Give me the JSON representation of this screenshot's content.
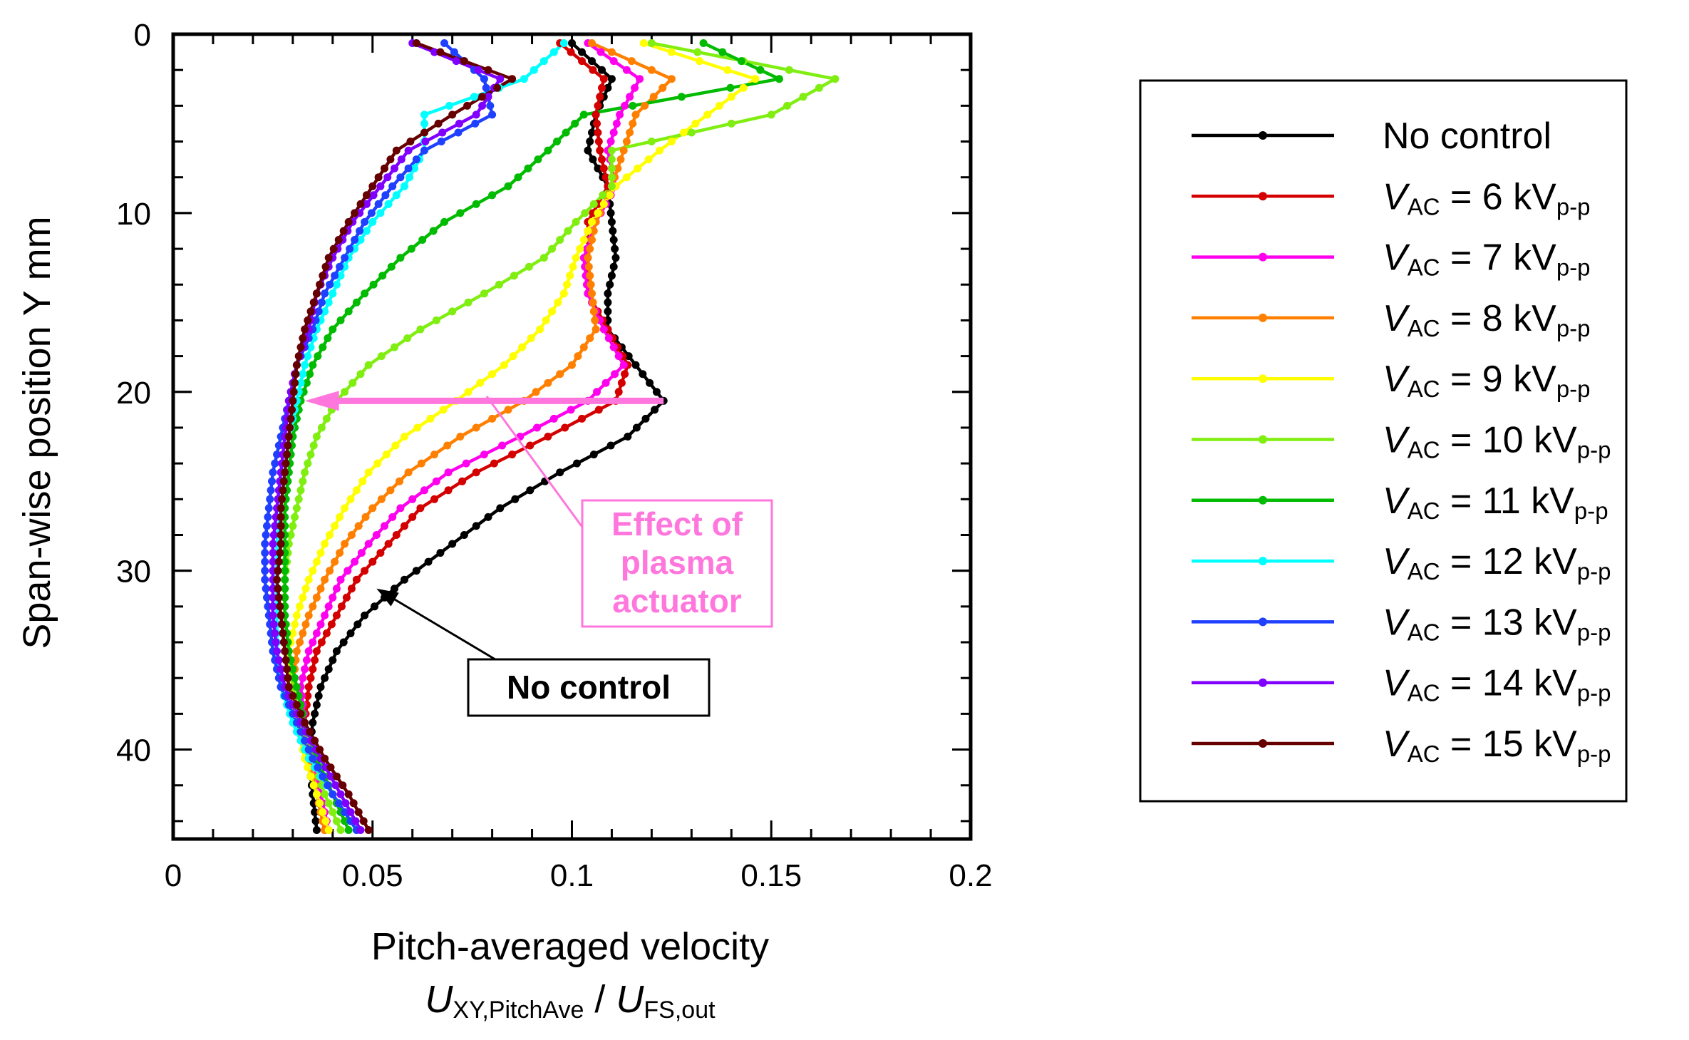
{
  "chart_data": {
    "type": "line",
    "title": "",
    "xlabel": "Pitch-averaged velocity",
    "xlabel_formula": {
      "num_main": "U",
      "num_sub": "XY,PitchAve",
      "den_main": "U",
      "den_sub": "FS,out"
    },
    "ylabel": "Span-wise position Y mm",
    "xlim": [
      0,
      0.2
    ],
    "ylim": [
      45,
      0
    ],
    "x_ticks": [
      "0",
      "0.05",
      "0.1",
      "0.15",
      "0.2"
    ],
    "y_ticks": [
      "0",
      "10",
      "20",
      "30",
      "40"
    ],
    "grid": false,
    "legend_position": "right",
    "y_values": [
      0.5,
      2.5,
      4.5,
      6.5,
      8.5,
      10.5,
      12.5,
      14.5,
      16.5,
      18.5,
      20.5,
      22.5,
      24.5,
      26.5,
      28.5,
      30.5,
      32.5,
      34.5,
      36.5,
      38.5,
      40.5,
      42.5,
      44.5
    ],
    "series": [
      {
        "name": "No control",
        "label_main": "No control",
        "label_sub": "",
        "label_tail": "",
        "color": "#000000",
        "x": [
          0.1,
          0.11,
          0.106,
          0.104,
          0.109,
          0.11,
          0.111,
          0.109,
          0.109,
          0.116,
          0.123,
          0.114,
          0.097,
          0.082,
          0.07,
          0.058,
          0.048,
          0.041,
          0.037,
          0.035,
          0.034,
          0.035,
          0.036
        ]
      },
      {
        "name": "VAC = 6 kVp-p",
        "label_main": "AC",
        "label_sub": "p-p",
        "label_tail": " = 6 kV",
        "color": "#d40000",
        "x": [
          0.097,
          0.108,
          0.106,
          0.107,
          0.109,
          0.104,
          0.104,
          0.104,
          0.109,
          0.114,
          0.111,
          0.094,
          0.076,
          0.062,
          0.054,
          0.046,
          0.041,
          0.036,
          0.034,
          0.033,
          0.034,
          0.036,
          0.038
        ]
      },
      {
        "name": "VAC = 7 kVp-p",
        "label_main": "AC",
        "label_sub": "p-p",
        "label_tail": " = 7 kV",
        "color": "#ff00ee",
        "x": [
          0.104,
          0.117,
          0.112,
          0.109,
          0.111,
          0.106,
          0.103,
          0.104,
          0.108,
          0.113,
          0.104,
          0.087,
          0.069,
          0.057,
          0.049,
          0.042,
          0.038,
          0.034,
          0.032,
          0.033,
          0.035,
          0.037,
          0.039
        ]
      },
      {
        "name": "VAC = 8 kVp-p",
        "label_main": "AC",
        "label_sub": "p-p",
        "label_tail": " = 8 kV",
        "color": "#ff8000",
        "x": [
          0.105,
          0.125,
          0.116,
          0.113,
          0.11,
          0.106,
          0.104,
          0.105,
          0.106,
          0.1,
          0.088,
          0.072,
          0.059,
          0.05,
          0.043,
          0.038,
          0.034,
          0.031,
          0.03,
          0.031,
          0.034,
          0.036,
          0.038
        ]
      },
      {
        "name": "VAC = 9 kVp-p",
        "label_main": "AC",
        "label_sub": "p-p",
        "label_tail": " = 9 kV",
        "color": "#ffff00",
        "x": [
          0.118,
          0.146,
          0.134,
          0.122,
          0.111,
          0.105,
          0.101,
          0.098,
          0.092,
          0.083,
          0.071,
          0.058,
          0.049,
          0.043,
          0.038,
          0.034,
          0.031,
          0.029,
          0.029,
          0.031,
          0.033,
          0.036,
          0.039
        ]
      },
      {
        "name": "VAC = 10 kVp-p",
        "label_main": "AC",
        "label_sub": "p-p",
        "label_tail": " = 10 kV",
        "color": "#80ee10",
        "x": [
          0.12,
          0.166,
          0.15,
          0.11,
          0.11,
          0.101,
          0.093,
          0.078,
          0.062,
          0.049,
          0.041,
          0.036,
          0.033,
          0.031,
          0.029,
          0.028,
          0.028,
          0.029,
          0.03,
          0.032,
          0.035,
          0.038,
          0.042
        ]
      },
      {
        "name": "VAC = 11 kVp-p",
        "label_main": "AC",
        "label_sub": "p-p",
        "label_tail": " = 11 kV",
        "color": "#00bb00",
        "x": [
          0.133,
          0.152,
          0.103,
          0.094,
          0.084,
          0.068,
          0.057,
          0.048,
          0.04,
          0.035,
          0.032,
          0.03,
          0.029,
          0.028,
          0.028,
          0.028,
          0.028,
          0.029,
          0.031,
          0.033,
          0.036,
          0.04,
          0.044
        ]
      },
      {
        "name": "VAC = 12 kVp-p",
        "label_main": "AC",
        "label_sub": "p-p",
        "label_tail": " = 12 kV",
        "color": "#00ffff",
        "x": [
          0.098,
          0.088,
          0.063,
          0.063,
          0.058,
          0.05,
          0.044,
          0.04,
          0.036,
          0.033,
          0.031,
          0.029,
          0.028,
          0.027,
          0.026,
          0.026,
          0.026,
          0.026,
          0.027,
          0.03,
          0.034,
          0.04,
          0.046
        ]
      },
      {
        "name": "VAC = 13 kVp-p",
        "label_main": "AC",
        "label_sub": "p-p",
        "label_tail": " = 13 kV",
        "color": "#2040ff",
        "x": [
          0.068,
          0.078,
          0.08,
          0.063,
          0.055,
          0.048,
          0.043,
          0.038,
          0.035,
          0.031,
          0.029,
          0.027,
          0.025,
          0.024,
          0.023,
          0.023,
          0.024,
          0.025,
          0.027,
          0.031,
          0.035,
          0.04,
          0.046
        ]
      },
      {
        "name": "VAC = 14 kVp-p",
        "label_main": "AC",
        "label_sub": "p-p",
        "label_tail": " = 14 kV",
        "color": "#8000ff",
        "x": [
          0.06,
          0.082,
          0.076,
          0.059,
          0.052,
          0.045,
          0.04,
          0.036,
          0.034,
          0.031,
          0.029,
          0.028,
          0.027,
          0.026,
          0.025,
          0.025,
          0.025,
          0.026,
          0.028,
          0.032,
          0.037,
          0.042,
          0.047
        ]
      },
      {
        "name": "VAC = 15 kVp-p",
        "label_main": "AC",
        "label_sub": "p-p",
        "label_tail": " = 15 kV",
        "color": "#660000",
        "x": [
          0.061,
          0.085,
          0.07,
          0.056,
          0.05,
          0.044,
          0.039,
          0.036,
          0.033,
          0.031,
          0.03,
          0.029,
          0.028,
          0.027,
          0.027,
          0.026,
          0.027,
          0.028,
          0.029,
          0.033,
          0.038,
          0.044,
          0.049
        ]
      }
    ],
    "annotations": [
      {
        "id": "effect",
        "lines": [
          "Effect of",
          "plasma",
          "actuator"
        ],
        "color": "#ff77dd",
        "arrow_from": [
          0.123,
          20.5
        ],
        "arrow_to": [
          0.033,
          20.5
        ]
      },
      {
        "id": "nocontrol",
        "text": "No control",
        "arrow_to": [
          0.051,
          31.0
        ]
      }
    ]
  }
}
